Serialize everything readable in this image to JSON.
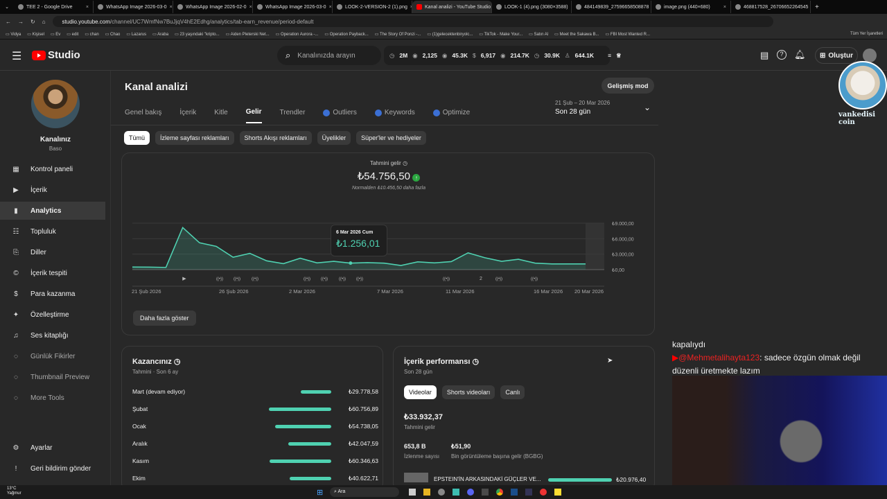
{
  "browser": {
    "tabs": [
      "TEE 2 - Google Drive",
      "WhatsApp Image 2026-03-0",
      "WhatsApp Image 2026-02-0",
      "WhatsApp Image 2026-03-0",
      "LOOK-2-VERSION-2 (1).png",
      "Kanal analizi - YouTube Studio",
      "LOOK-1 (4).png (3080×3588)",
      "484149839_27596658508878",
      "image.png (440×680)",
      "468817528_26706652264545"
    ],
    "active_tab": 5,
    "url_host": "studio.youtube.com",
    "url_path": "/channel/UC7WmfNw7BuJjqV4hE2Edhg/analytics/tab-earn_revenue/period-default",
    "bookmarks": [
      "Vidya",
      "Kişisel",
      "Ev",
      "edit",
      "chan",
      "Chao",
      "Lazarus",
      "Araba",
      "23 yaşındaki \"kripto...",
      "Aiden Pleterski Net...",
      "Operation Aurora -...",
      "Operation Payback...",
      "The Story Of Ponzi -...",
      "(1)gelecektenbiryolc...",
      "TikTok - Make Your...",
      "Satın Al",
      "Meet the Sakawa B...",
      "FBI Most Wanted R..."
    ],
    "all_bookmarks": "Tüm Yer İşaretleri"
  },
  "header": {
    "logo": "Studio",
    "search_placeholder": "Kanalınızda arayın",
    "stats": [
      "2M",
      "2,125",
      "45.3K",
      "6,917",
      "214.7K",
      "30.9K",
      "644.1K"
    ],
    "create": "Oluştur"
  },
  "overlay": {
    "cat_label": "vankedisi coin"
  },
  "sidebar": {
    "channel_title": "Kanalınız",
    "channel_name": "Baso",
    "items": [
      {
        "label": "Kontrol paneli",
        "icon": "dashboard-icon"
      },
      {
        "label": "İçerik",
        "icon": "content-icon"
      },
      {
        "label": "Analytics",
        "icon": "analytics-icon",
        "active": true
      },
      {
        "label": "Topluluk",
        "icon": "community-icon"
      },
      {
        "label": "Diller",
        "icon": "subtitles-icon"
      },
      {
        "label": "İçerik tespiti",
        "icon": "copyright-icon"
      },
      {
        "label": "Para kazanma",
        "icon": "dollar-icon"
      },
      {
        "label": "Özelleştirme",
        "icon": "magic-icon"
      },
      {
        "label": "Ses kitaplığı",
        "icon": "audio-library-icon"
      },
      {
        "label": "Günlük Fikirler",
        "icon": "extension-icon"
      },
      {
        "label": "Thumbnail Preview",
        "icon": "extension-icon"
      },
      {
        "label": "More Tools",
        "icon": "extension-icon"
      }
    ],
    "settings": "Ayarlar",
    "feedback": "Geri bildirim gönder"
  },
  "main": {
    "title": "Kanal analizi",
    "advanced": "Gelişmiş mod",
    "tabs": [
      "Genel bakış",
      "İçerik",
      "Kitle",
      "Gelir",
      "Trendler",
      "Outliers",
      "Keywords",
      "Optimize"
    ],
    "active_tab": "Gelir",
    "date_range": "21 Şub – 20 Mar 2026",
    "period": "Son 28 gün",
    "chips": [
      "Tümü",
      "İzleme sayfası reklamları",
      "Shorts Akışı reklamları",
      "Üyelikler",
      "Süper'ler ve hediyeler"
    ],
    "metric_label": "Tahmini gelir",
    "metric_value": "₺54.756,50",
    "metric_compare": "Normalden ₺10.456,50 daha fazla",
    "tooltip_date": "6 Mar 2026 Cum",
    "tooltip_value": "₺1.256,01",
    "show_more": "Daha fazla göster"
  },
  "chart_data": {
    "type": "area",
    "x": [
      "21 Şub",
      "22 Şub",
      "23 Şub",
      "24 Şub",
      "25 Şub",
      "26 Şub",
      "27 Şub",
      "28 Şub",
      "1 Mar",
      "2 Mar",
      "3 Mar",
      "4 Mar",
      "5 Mar",
      "6 Mar",
      "7 Mar",
      "8 Mar",
      "9 Mar",
      "10 Mar",
      "11 Mar",
      "12 Mar",
      "13 Mar",
      "14 Mar",
      "15 Mar",
      "16 Mar",
      "17 Mar",
      "18 Mar",
      "19 Mar",
      "20 Mar"
    ],
    "values": [
      500,
      480,
      420,
      8150,
      5200,
      4500,
      2400,
      3150,
      1700,
      1150,
      2200,
      1300,
      1600,
      1256.01,
      1350,
      1250,
      800,
      1500,
      1300,
      1550,
      3250,
      2300,
      1600,
      2000,
      1250,
      1100,
      1100,
      1100
    ],
    "x_ticks": [
      "21 Şub 2026",
      "26 Şub 2026",
      "2 Mar 2026",
      "7 Mar 2026",
      "11 Mar 2026",
      "16 Mar 2026",
      "20 Mar 2026"
    ],
    "y_ticks": [
      "₺9.000,00",
      "₺6.000,00",
      "₺3.000,00",
      "₺0,00"
    ],
    "ylim": [
      0,
      9000
    ],
    "grid": true,
    "color": "#4fd1b1"
  },
  "earnings": {
    "title": "Kazancınız",
    "subtitle": "Tahmini · Son 6 ay",
    "rows": [
      {
        "label": "Mart (devam ediyor)",
        "value": "₺29.778,58",
        "amount": 29778.58
      },
      {
        "label": "Şubat",
        "value": "₺60.756,89",
        "amount": 60756.89
      },
      {
        "label": "Ocak",
        "value": "₺54.738,05",
        "amount": 54738.05
      },
      {
        "label": "Aralık",
        "value": "₺42.047,59",
        "amount": 42047.59
      },
      {
        "label": "Kasım",
        "value": "₺60.346,63",
        "amount": 60346.63
      },
      {
        "label": "Ekim",
        "value": "₺40.622,71",
        "amount": 40622.71
      }
    ]
  },
  "performance": {
    "title": "İçerik performansı",
    "subtitle": "Son 28 gün",
    "chips": [
      "Videolar",
      "Shorts videoları",
      "Canlı"
    ],
    "revenue": "₺33.932,37",
    "revenue_label": "Tahmini gelir",
    "views": "653,8 B",
    "views_label": "İzlenme sayısı",
    "rpm": "₺51,90",
    "rpm_label": "Bin görüntüleme başına gelir (BGBG)",
    "top_video": "EPSTEIN'İN ARKASINDAKİ GÜÇLER VE...",
    "top_video_value": "₺20.976,40"
  },
  "chat": {
    "line0": "kapalıydı",
    "user": "@Mehmetalihayta123",
    "message": ": sadece özgün olmak değil düzenli üretmekte lazım"
  },
  "taskbar": {
    "temp": "13°C",
    "weather": "Yağmur",
    "search": "Ara"
  }
}
